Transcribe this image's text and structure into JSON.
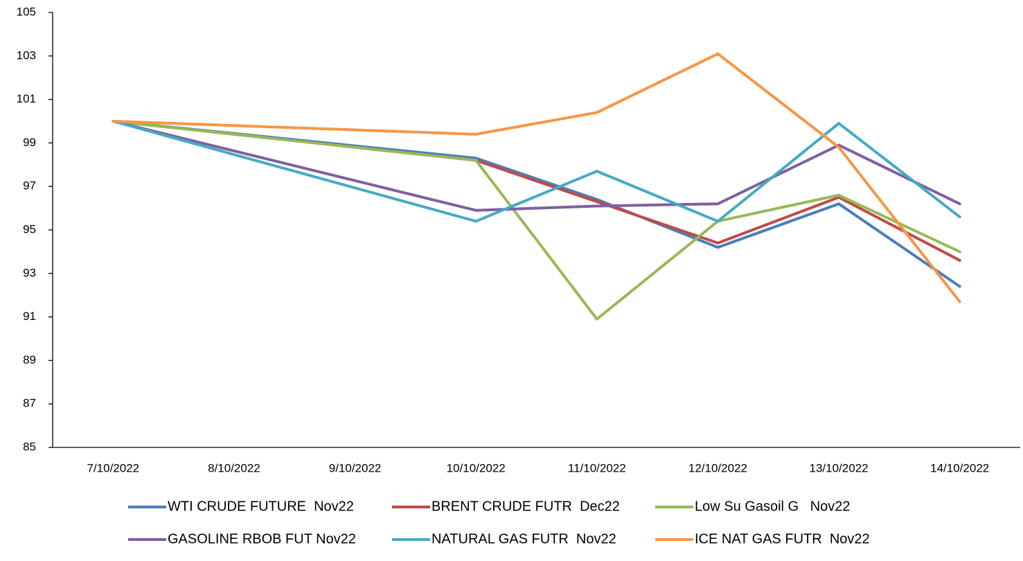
{
  "chart_data": {
    "type": "line",
    "categories": [
      "7/10/2022",
      "8/10/2022",
      "9/10/2022",
      "10/10/2022",
      "11/10/2022",
      "12/10/2022",
      "13/10/2022",
      "14/10/2022"
    ],
    "series": [
      {
        "name": "WTI CRUDE FUTURE  Nov22",
        "color": "#4a7ebb",
        "values": [
          100,
          null,
          null,
          98.3,
          96.4,
          94.2,
          96.2,
          92.4
        ]
      },
      {
        "name": "BRENT CRUDE FUTR  Dec22",
        "color": "#be4b48",
        "values": [
          100,
          null,
          null,
          98.2,
          96.3,
          94.4,
          96.5,
          93.6
        ]
      },
      {
        "name": "Low Su Gasoil G   Nov22",
        "color": "#98b954",
        "values": [
          100,
          null,
          null,
          98.2,
          90.9,
          95.4,
          96.6,
          94.0
        ]
      },
      {
        "name": "GASOLINE RBOB FUT Nov22",
        "color": "#7d60a0",
        "values": [
          100,
          null,
          null,
          95.9,
          96.1,
          96.2,
          98.9,
          96.2
        ]
      },
      {
        "name": "NATURAL GAS FUTR  Nov22",
        "color": "#46aac5",
        "values": [
          100,
          null,
          null,
          95.4,
          97.7,
          95.4,
          99.9,
          95.6
        ]
      },
      {
        "name": "ICE NAT GAS FUTR  Nov22",
        "color": "#f79646",
        "values": [
          100,
          null,
          null,
          99.4,
          100.4,
          103.1,
          98.8,
          91.7
        ]
      }
    ],
    "ylim": [
      85,
      105
    ],
    "yticks": [
      85,
      87,
      89,
      91,
      93,
      95,
      97,
      99,
      101,
      103,
      105
    ],
    "grid": false,
    "legend": "bottom",
    "connect_gaps": true
  }
}
